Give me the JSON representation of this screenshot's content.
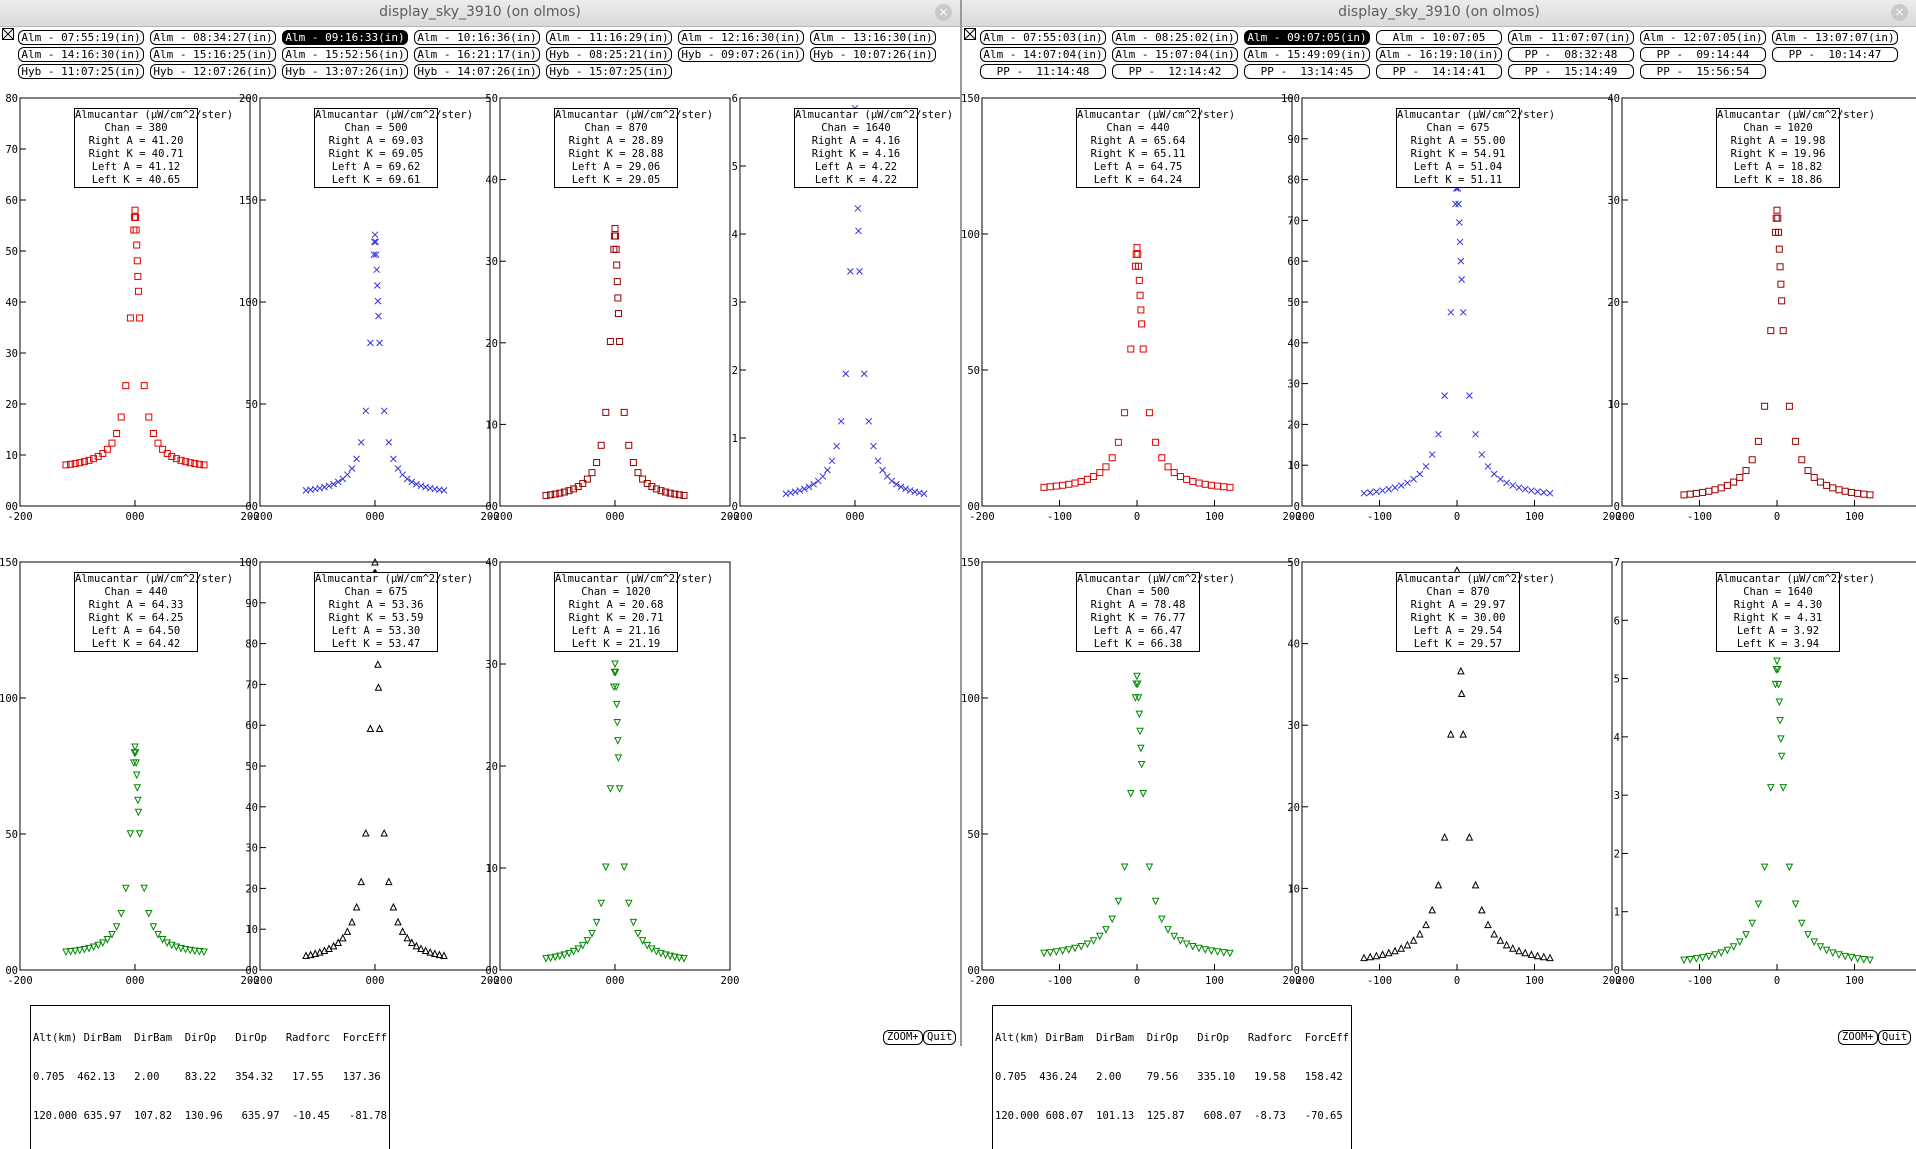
{
  "windows": [
    {
      "title": "display_sky_3910 (on olmos)",
      "buttons": [
        {
          "label": "Alm - 07:55:19(in)",
          "selected": false
        },
        {
          "label": "Alm - 08:34:27(in)",
          "selected": false
        },
        {
          "label": "Alm - 09:16:33(in)",
          "selected": true
        },
        {
          "label": "Alm - 10:16:36(in)",
          "selected": false
        },
        {
          "label": "Alm - 11:16:29(in)",
          "selected": false
        },
        {
          "label": "Alm - 12:16:30(in)",
          "selected": false
        },
        {
          "label": "Alm - 13:16:30(in)",
          "selected": false
        },
        {
          "label": "Alm - 14:16:30(in)",
          "selected": false
        },
        {
          "label": "Alm - 15:16:25(in)",
          "selected": false
        },
        {
          "label": "Alm - 15:52:56(in)",
          "selected": false
        },
        {
          "label": "Alm - 16:21:17(in)",
          "selected": false
        },
        {
          "label": "Hyb - 08:25:21(in)",
          "selected": false
        },
        {
          "label": "Hyb - 09:07:26(in)",
          "selected": false
        },
        {
          "label": "Hyb - 10:07:26(in)",
          "selected": false
        },
        {
          "label": "Hyb - 11:07:25(in)",
          "selected": false
        },
        {
          "label": "Hyb - 12:07:26(in)",
          "selected": false
        },
        {
          "label": "Hyb - 13:07:26(in)",
          "selected": false
        },
        {
          "label": "Hyb - 14:07:26(in)",
          "selected": false
        },
        {
          "label": "Hyb - 15:07:25(in)",
          "selected": false
        }
      ],
      "table": {
        "header": "Alt(km) DirBam  DirBam  DirOp   DirOp   Radforc  ForcEff",
        "rows": [
          "0.705  462.13   2.00    83.22   354.32   17.55   137.36",
          "120.000 635.97  107.82  130.96   635.97  -10.45   -81.78"
        ]
      },
      "zoom_label": "ZOOM+",
      "quit_label": "Quit"
    },
    {
      "title": "display_sky_3910 (on olmos)",
      "buttons": [
        {
          "label": "Alm - 07:55:03(in)",
          "selected": false
        },
        {
          "label": "Alm - 08:25:02(in)",
          "selected": false
        },
        {
          "label": "Alm - 09:07:05(in)",
          "selected": true
        },
        {
          "label": "Alm - 10:07:05",
          "selected": false
        },
        {
          "label": "Alm - 11:07:07(in)",
          "selected": false
        },
        {
          "label": "Alm - 12:07:05(in)",
          "selected": false
        },
        {
          "label": "Alm - 13:07:07(in)",
          "selected": false
        },
        {
          "label": "Alm - 14:07:04(in)",
          "selected": false
        },
        {
          "label": "Alm - 15:07:04(in)",
          "selected": false
        },
        {
          "label": "Alm - 15:49:09(in)",
          "selected": false
        },
        {
          "label": "Alm - 16:19:10(in)",
          "selected": false
        },
        {
          "label": "PP -  08:32:48",
          "selected": false
        },
        {
          "label": "PP -  09:14:44",
          "selected": false
        },
        {
          "label": "PP -  10:14:47",
          "selected": false
        },
        {
          "label": "PP -  11:14:48",
          "selected": false
        },
        {
          "label": "PP -  12:14:42",
          "selected": false
        },
        {
          "label": "PP -  13:14:45",
          "selected": false
        },
        {
          "label": "PP -  14:14:41",
          "selected": false
        },
        {
          "label": "PP -  15:14:49",
          "selected": false
        },
        {
          "label": "PP -  15:56:54",
          "selected": false
        }
      ],
      "table": {
        "header": "Alt(km) DirBam  DirBam  DirOp   DirOp   Radforc  ForcEff",
        "rows": [
          "0.705  436.24   2.00    79.56   335.10   19.58   158.42",
          "120.000 608.07  101.13  125.87   608.07  -8.73   -70.65"
        ]
      },
      "zoom_label": "ZOOM+",
      "quit_label": "Quit"
    }
  ],
  "chart_data": [
    {
      "type": "scatter",
      "window": 0,
      "marker": "square",
      "color": "#e00000",
      "xlim": [
        -200,
        200
      ],
      "ylim": [
        0,
        80
      ],
      "yticks": [
        "00",
        "10",
        "20",
        "30",
        "40",
        "50",
        "60",
        "70",
        "80"
      ],
      "xticks": [
        "-200",
        "000",
        "200"
      ],
      "legend": [
        "Almucantar (µW/cm^2/ster)",
        "Chan = 380",
        "Right A = 41.20",
        "Right K = 40.71",
        "Left A = 41.12",
        "Left K = 40.65"
      ],
      "peak": 58,
      "base": 7,
      "lower": false
    },
    {
      "type": "scatter",
      "window": 0,
      "marker": "x",
      "color": "#3333dd",
      "xlim": [
        -200,
        200
      ],
      "ylim": [
        0,
        200
      ],
      "yticks": [
        "00",
        "50",
        "100",
        "150",
        "200"
      ],
      "xticks": [
        "-200",
        "000",
        "200"
      ],
      "legend": [
        "Almucantar (µW/cm^2/ster)",
        "Chan = 500",
        "Right A = 69.03",
        "Right K = 69.05",
        "Left A = 69.62",
        "Left K = 69.61"
      ],
      "peak": 133,
      "base": 5,
      "lower": false
    },
    {
      "type": "scatter",
      "window": 0,
      "marker": "square",
      "color": "#990000",
      "xlim": [
        -200,
        200
      ],
      "ylim": [
        0,
        50
      ],
      "yticks": [
        "00",
        "10",
        "20",
        "30",
        "40",
        "50"
      ],
      "xticks": [
        "-200",
        "000",
        "200"
      ],
      "legend": [
        "Almucantar (µW/cm^2/ster)",
        "Chan = 870",
        "Right A = 28.89",
        "Right K = 28.88",
        "Left A = 29.06",
        "Left K = 29.05"
      ],
      "peak": 34,
      "base": 0.6,
      "lower": false
    },
    {
      "type": "scatter",
      "window": 0,
      "marker": "x",
      "color": "#3333dd",
      "xlim": [
        -200,
        200
      ],
      "ylim": [
        0,
        6
      ],
      "yticks": [
        "0",
        "1",
        "2",
        "3",
        "4",
        "5",
        "6"
      ],
      "xticks": [
        "-200",
        "000",
        "200"
      ],
      "legend": [
        "Almucantar (µW/cm^2/ster)",
        "Chan = 1640",
        "Right A = 4.16",
        "Right K = 4.16",
        "Left A = 4.22",
        "Left K = 4.22"
      ],
      "peak": 5.85,
      "base": 0.06,
      "lower": false
    },
    {
      "type": "scatter",
      "window": 0,
      "marker": "tri-down",
      "color": "#008800",
      "xlim": [
        -200,
        200
      ],
      "ylim": [
        0,
        150
      ],
      "yticks": [
        "00",
        "50",
        "100",
        "150"
      ],
      "xticks": [
        "-200",
        "000",
        "200"
      ],
      "legend": [
        "Almucantar (µW/cm^2/ster)",
        "Chan = 440",
        "Right A = 64.33",
        "Right K = 64.25",
        "Left A = 64.50",
        "Left K = 64.42"
      ],
      "peak": 82,
      "base": 5,
      "lower": true
    },
    {
      "type": "scatter",
      "window": 0,
      "marker": "tri-up",
      "color": "#000000",
      "xlim": [
        -200,
        200
      ],
      "ylim": [
        0,
        100
      ],
      "yticks": [
        "00",
        "10",
        "20",
        "30",
        "40",
        "50",
        "60",
        "70",
        "80",
        "90",
        "100"
      ],
      "xticks": [
        "-200",
        "000",
        "200"
      ],
      "legend": [
        "Almucantar (µW/cm^2/ster)",
        "Chan = 675",
        "Right A = 53.36",
        "Right K = 53.59",
        "Left A = 53.30",
        "Left K = 53.47"
      ],
      "peak": 100,
      "base": 1.5,
      "lower": true
    },
    {
      "type": "scatter",
      "window": 0,
      "marker": "tri-down",
      "color": "#008800",
      "xlim": [
        -200,
        200
      ],
      "ylim": [
        0,
        40
      ],
      "yticks": [
        "00",
        "10",
        "20",
        "30",
        "40"
      ],
      "xticks": [
        "-200",
        "000",
        "200"
      ],
      "legend": [
        "Almucantar (µW/cm^2/ster)",
        "Chan = 1020",
        "Right A = 20.68",
        "Right K = 20.71",
        "Left A = 21.16",
        "Left K = 21.19"
      ],
      "peak": 30,
      "base": 0.5,
      "lower": true
    },
    {
      "type": "scatter",
      "window": 1,
      "marker": "square",
      "color": "#e00000",
      "xlim": [
        -200,
        200
      ],
      "ylim": [
        0,
        150
      ],
      "yticks": [
        "00",
        "50",
        "100",
        "150"
      ],
      "xticks": [
        "-200",
        "-100",
        "0",
        "100",
        "200"
      ],
      "legend": [
        "Almucantar (µW/cm^2/ster)",
        "Chan = 440",
        "Right A = 65.64",
        "Right K = 65.11",
        "Left A = 64.75",
        "Left K = 64.24"
      ],
      "peak": 95,
      "base": 5,
      "lower": false
    },
    {
      "type": "scatter",
      "window": 1,
      "marker": "x",
      "color": "#3333dd",
      "xlim": [
        -200,
        200
      ],
      "ylim": [
        0,
        100
      ],
      "yticks": [
        "0",
        "10",
        "20",
        "30",
        "40",
        "50",
        "60",
        "70",
        "80",
        "90",
        "100"
      ],
      "xticks": [
        "-200",
        "-100",
        "0",
        "100",
        "200"
      ],
      "legend": [
        "Almucantar (µW/cm^2/ster)",
        "Chan = 675",
        "Right A = 55.00",
        "Right K = 54.91",
        "Left A = 51.04",
        "Left K = 51.11"
      ],
      "peak": 80,
      "base": 1.5,
      "lower": false
    },
    {
      "type": "scatter",
      "window": 1,
      "marker": "square",
      "color": "#990000",
      "xlim": [
        -200,
        200
      ],
      "ylim": [
        0,
        40
      ],
      "yticks": [
        "0",
        "10",
        "20",
        "30",
        "40"
      ],
      "xticks": [
        "-200",
        "-100",
        "0",
        "100",
        "200"
      ],
      "legend": [
        "Almucantar (µW/cm^2/ster)",
        "Chan = 1020",
        "Right A = 19.98",
        "Right K = 19.96",
        "Left A = 18.82",
        "Left K = 18.86"
      ],
      "peak": 29,
      "base": 0.5,
      "lower": false
    },
    {
      "type": "scatter",
      "window": 1,
      "marker": "tri-down",
      "color": "#008800",
      "xlim": [
        -200,
        200
      ],
      "ylim": [
        0,
        150
      ],
      "yticks": [
        "00",
        "50",
        "100",
        "150"
      ],
      "xticks": [
        "-200",
        "-100",
        "0",
        "100",
        "200"
      ],
      "legend": [
        "Almucantar (µW/cm^2/ster)",
        "Chan = 500",
        "Right A = 78.48",
        "Right K = 76.77",
        "Left A = 66.47",
        "Left K = 66.38"
      ],
      "peak": 108,
      "base": 4,
      "lower": true
    },
    {
      "type": "scatter",
      "window": 1,
      "marker": "tri-up",
      "color": "#000000",
      "xlim": [
        -200,
        200
      ],
      "ylim": [
        0,
        50
      ],
      "yticks": [
        "0",
        "10",
        "20",
        "30",
        "40",
        "50"
      ],
      "xticks": [
        "-200",
        "-100",
        "0",
        "100",
        "200"
      ],
      "legend": [
        "Almucantar (µW/cm^2/ster)",
        "Chan = 870",
        "Right A = 29.97",
        "Right K = 30.00",
        "Left A = 29.54",
        "Left K = 29.57"
      ],
      "peak": 49,
      "base": 0.5,
      "lower": true
    },
    {
      "type": "scatter",
      "window": 1,
      "marker": "tri-down",
      "color": "#008800",
      "xlim": [
        -200,
        200
      ],
      "ylim": [
        0,
        7
      ],
      "yticks": [
        "0",
        "1",
        "2",
        "3",
        "4",
        "5",
        "6",
        "7"
      ],
      "xticks": [
        "-200",
        "-100",
        "0",
        "100",
        "200"
      ],
      "legend": [
        "Almucantar (µW/cm^2/ster)",
        "Chan = 1640",
        "Right A = 4.30",
        "Right K = 4.31",
        "Left A = 3.92",
        "Left K = 3.94"
      ],
      "peak": 5.3,
      "base": 0.06,
      "lower": true
    }
  ]
}
